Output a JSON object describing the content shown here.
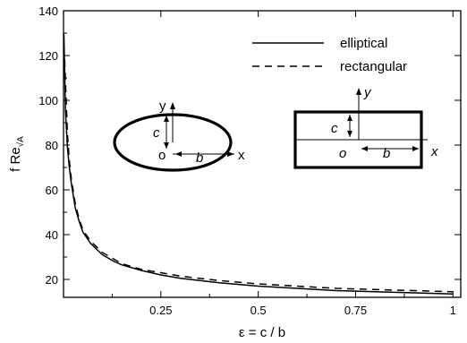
{
  "chart_data": {
    "type": "line",
    "xlabel_main": "ε = c / b",
    "ylabel_main": "f Re",
    "ylabel_sub": "√A",
    "xlim": [
      0,
      1.02
    ],
    "ylim": [
      12,
      140
    ],
    "xticks": [
      {
        "value": 0.25,
        "label": "0.25"
      },
      {
        "value": 0.5,
        "label": "0.5"
      },
      {
        "value": 0.75,
        "label": "0.75"
      },
      {
        "value": 1,
        "label": "1"
      }
    ],
    "yticks": [
      {
        "value": 20,
        "label": "20"
      },
      {
        "value": 40,
        "label": "40"
      },
      {
        "value": 60,
        "label": "60"
      },
      {
        "value": 80,
        "label": "80"
      },
      {
        "value": 100,
        "label": "100"
      },
      {
        "value": 120,
        "label": "120"
      },
      {
        "value": 140,
        "label": "140"
      }
    ],
    "legend_position": "top-right",
    "series": [
      {
        "name": "elliptical",
        "dash": "solid",
        "x": [
          0.001,
          0.005,
          0.01,
          0.015,
          0.02,
          0.03,
          0.04,
          0.05,
          0.07,
          0.1,
          0.13,
          0.15,
          0.2,
          0.25,
          0.3,
          0.4,
          0.5,
          0.6,
          0.7,
          0.8,
          0.9,
          1.0
        ],
        "y": [
          130,
          95,
          79,
          70,
          63,
          52,
          46,
          41,
          36,
          31,
          28,
          26.5,
          24,
          22,
          20.5,
          18.5,
          17,
          16,
          15,
          14.5,
          14,
          13.5
        ]
      },
      {
        "name": "rectangular",
        "dash": "dashed",
        "x": [
          0.003,
          0.01,
          0.015,
          0.02,
          0.03,
          0.04,
          0.05,
          0.07,
          0.1,
          0.13,
          0.15,
          0.2,
          0.25,
          0.3,
          0.4,
          0.5,
          0.6,
          0.7,
          0.8,
          0.9,
          1.0
        ],
        "y": [
          118,
          85,
          73,
          65,
          54,
          47,
          42,
          37,
          32,
          29,
          27,
          24.5,
          23,
          21.5,
          19.5,
          18,
          17,
          16,
          15.5,
          15,
          14.5
        ]
      }
    ],
    "insets": {
      "ellipse": {
        "y": "y",
        "c": "c",
        "o": "o",
        "b": "b",
        "x": "x"
      },
      "rectangle": {
        "y": "y",
        "c": "c",
        "o": "o",
        "b": "b",
        "x": "x"
      }
    }
  }
}
